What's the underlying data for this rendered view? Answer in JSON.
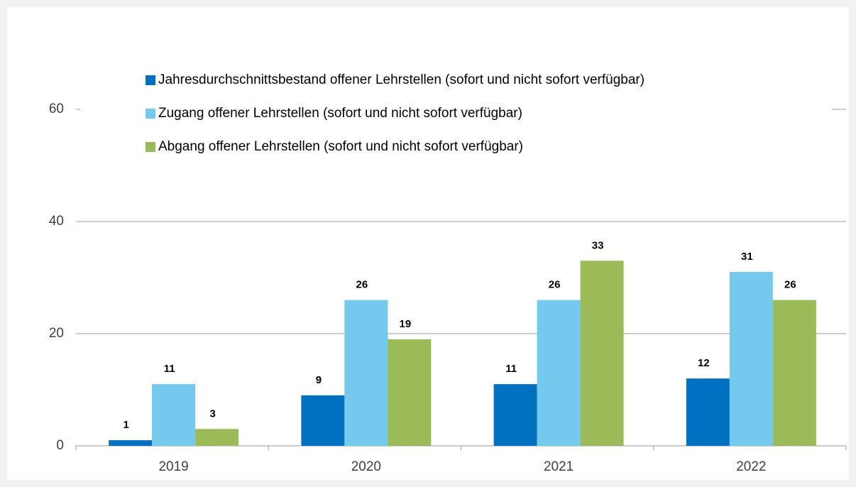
{
  "chart_data": {
    "type": "bar",
    "categories": [
      "2019",
      "2020",
      "2021",
      "2022"
    ],
    "series": [
      {
        "name": "Jahresdurchschnittsbestand offener Lehrstellen (sofort und nicht sofort verfügbar)",
        "color": "#0070c0",
        "values": [
          1,
          9,
          11,
          12
        ]
      },
      {
        "name": "Zugang offener Lehrstellen (sofort und nicht sofort verfügbar)",
        "color": "#75c9ec",
        "values": [
          11,
          26,
          26,
          31
        ]
      },
      {
        "name": "Abgang offener Lehrstellen (sofort und nicht sofort verfügbar)",
        "color": "#9bbb59",
        "values": [
          3,
          19,
          33,
          26
        ]
      }
    ],
    "ylim": [
      0,
      60
    ],
    "yticks": [
      0,
      20,
      40,
      60
    ],
    "grid": true,
    "legend": "top"
  }
}
